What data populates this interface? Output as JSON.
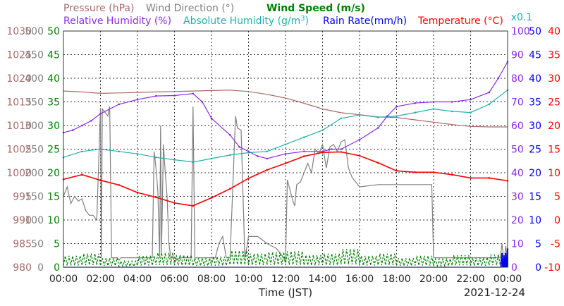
{
  "chart_data": {
    "type": "line",
    "date": "2021-12-24",
    "xlabel": "Time (JST)",
    "x_ticks": [
      "00:00",
      "02:00",
      "04:00",
      "06:00",
      "08:00",
      "10:00",
      "12:00",
      "14:00",
      "16:00",
      "18:00",
      "20:00",
      "22:00",
      "00:00"
    ],
    "legend": [
      {
        "id": "pressure",
        "label": "Pressure (hPa)",
        "color": "#a86a6a"
      },
      {
        "id": "wind_dir",
        "label": "Wind Direction (°)",
        "color": "#808080"
      },
      {
        "id": "wind_speed",
        "label": "Wind Speed (m/s)",
        "color": "#008000"
      },
      {
        "id": "rh",
        "label": "Relative Humidity (%)",
        "color": "#8a2be2"
      },
      {
        "id": "ah",
        "label": "Absolute Humidity (g/m",
        "label_sup": "3",
        "label_tail": ")",
        "color": "#20b2aa"
      },
      {
        "id": "rain",
        "label": "Rain Rate(mm/h)",
        "color": "#0000ee"
      },
      {
        "id": "temp",
        "label": "Temperature (°C)",
        "color": "#ff0000"
      }
    ],
    "scale_note": "x0.1",
    "axes": {
      "pressure": {
        "color": "#a86a6a",
        "range": [
          980,
          1030
        ],
        "ticks": [
          "980",
          "985",
          "990",
          "995",
          "1000",
          "1005",
          "1010",
          "1015",
          "1020",
          "1025",
          "1030"
        ]
      },
      "wind_dir": {
        "color": "#808080",
        "range": [
          0,
          500
        ],
        "ticks": [
          "0",
          "50",
          "100",
          "150",
          "200",
          "250",
          "300",
          "350",
          "400",
          "450",
          "500"
        ]
      },
      "wind_speed": {
        "color": "#008000",
        "range": [
          0,
          50
        ],
        "ticks": [
          "0",
          "5",
          "10",
          "15",
          "20",
          "25",
          "30",
          "35",
          "40",
          "45",
          "50"
        ]
      },
      "rh": {
        "color": "#8a2be2",
        "range": [
          0,
          100
        ],
        "ticks": [
          "0",
          "10",
          "20",
          "30",
          "40",
          "50",
          "60",
          "70",
          "80",
          "90",
          "100"
        ]
      },
      "rain": {
        "color": "#0000ee",
        "range": [
          0,
          50
        ],
        "ticks": [
          "0",
          "5",
          "10",
          "15",
          "20",
          "25",
          "30",
          "35",
          "40",
          "45",
          "50"
        ]
      },
      "temp": {
        "color": "#ff0000",
        "range": [
          -10,
          40
        ],
        "ticks": [
          "-10",
          "-5",
          "0",
          "5",
          "10",
          "15",
          "20",
          "25",
          "30",
          "35",
          "40"
        ]
      }
    },
    "series": [
      {
        "id": "pressure",
        "name": "Pressure (hPa)",
        "axis": "pressure",
        "color": "#a86a6a",
        "x": [
          0,
          1,
          2,
          3,
          4,
          5,
          6,
          7,
          8,
          9,
          10,
          11,
          12,
          13,
          14,
          15,
          16,
          17,
          18,
          19,
          20,
          21,
          22,
          23,
          24
        ],
        "y": [
          1017.3,
          1017.1,
          1016.8,
          1016.9,
          1017.0,
          1017.1,
          1017.2,
          1017.3,
          1017.4,
          1017.5,
          1017.2,
          1016.6,
          1015.8,
          1014.7,
          1013.5,
          1012.7,
          1012.3,
          1011.8,
          1011.7,
          1011.2,
          1010.7,
          1010.2,
          1009.8,
          1009.7,
          1009.7
        ]
      },
      {
        "id": "ah",
        "name": "Absolute Humidity (g/m3)",
        "axis": "rh",
        "color": "#20b2aa",
        "scale": "x0.1",
        "x": [
          0,
          1,
          2,
          3,
          4,
          5,
          6,
          7,
          8,
          9,
          10,
          11,
          12,
          13,
          14,
          15,
          16,
          17,
          18,
          19,
          20,
          21,
          22,
          23,
          24
        ],
        "y": [
          46.5,
          49.0,
          50.0,
          49.0,
          48.0,
          46.5,
          45.5,
          44.5,
          46.0,
          47.5,
          48.5,
          49.0,
          52.0,
          55.0,
          58.0,
          63.0,
          64.5,
          63.5,
          64.0,
          65.5,
          67.0,
          66.0,
          65.5,
          69.0,
          75.0
        ]
      },
      {
        "id": "rh",
        "name": "Relative Humidity (%)",
        "axis": "rh",
        "color": "#8a2be2",
        "x": [
          0,
          0.5,
          1,
          1.5,
          2,
          3,
          4,
          5,
          6,
          7,
          7.5,
          8,
          9,
          9.5,
          10,
          10.5,
          11,
          12,
          13,
          14,
          14.5,
          15,
          16,
          17,
          17.5,
          18,
          19,
          20,
          21,
          22,
          23,
          23.5,
          24
        ],
        "y": [
          57,
          58,
          60,
          62,
          65,
          69,
          71,
          72.5,
          72.7,
          73.5,
          70,
          63,
          56,
          51,
          49,
          47,
          46,
          48,
          49,
          49,
          50,
          50,
          54,
          59,
          64,
          68,
          69.5,
          70,
          70,
          71,
          74,
          80,
          87
        ]
      },
      {
        "id": "temp",
        "name": "Temperature (°C)",
        "axis": "temp",
        "color": "#ff0000",
        "x": [
          0,
          1,
          2,
          3,
          4,
          5,
          6,
          7,
          8,
          9,
          10,
          11,
          12,
          13,
          14,
          15,
          16,
          17,
          18,
          19,
          20,
          21,
          22,
          23,
          24
        ],
        "y": [
          8.6,
          9.6,
          8.4,
          7.4,
          5.8,
          4.8,
          3.6,
          3.0,
          4.7,
          6.6,
          8.8,
          10.6,
          12.0,
          13.5,
          14.3,
          14.4,
          13.6,
          12.1,
          10.4,
          10.1,
          10.1,
          9.6,
          8.9,
          8.9,
          8.3
        ]
      },
      {
        "id": "wind_dir",
        "name": "Wind Direction (°)",
        "axis": "wind_dir",
        "color": "#808080",
        "x": [
          0,
          0.2,
          0.4,
          0.6,
          0.8,
          1.0,
          1.2,
          1.4,
          1.6,
          1.8,
          2.0,
          2.05,
          2.1,
          2.4,
          2.5,
          2.6,
          2.9,
          3.0,
          3.1,
          4.8,
          4.9,
          5.0,
          5.1,
          5.2,
          5.25,
          5.3,
          5.4,
          5.5,
          5.6,
          5.7,
          5.8,
          5.9,
          6.0,
          6.1,
          6.3,
          6.9,
          7.0,
          7.1,
          7.3,
          8.2,
          8.4,
          8.6,
          8.8,
          9.0,
          9.3,
          9.4,
          9.6,
          9.8,
          9.9,
          10.0,
          10.5,
          11.0,
          11.5,
          11.9,
          12.0,
          12.1,
          12.4,
          12.5,
          12.6,
          12.8,
          13.0,
          13.2,
          13.4,
          13.6,
          13.8,
          14.0,
          14.2,
          14.4,
          14.6,
          14.8,
          15.0,
          15.2,
          15.4,
          15.6,
          15.8,
          16.0,
          17.0,
          18.0,
          19.0,
          19.9,
          20.0,
          20.1,
          21.0,
          22.0,
          23.0,
          23.6,
          23.7,
          23.8,
          23.9,
          24.0
        ],
        "y": [
          150,
          170,
          135,
          150,
          140,
          145,
          120,
          110,
          110,
          100,
          337,
          20,
          335,
          320,
          340,
          20,
          20,
          15,
          20,
          20,
          245,
          210,
          160,
          20,
          300,
          30,
          260,
          200,
          150,
          50,
          20,
          20,
          20,
          15,
          20,
          20,
          340,
          20,
          20,
          20,
          50,
          65,
          20,
          20,
          320,
          295,
          290,
          20,
          40,
          65,
          65,
          50,
          40,
          20,
          10,
          185,
          140,
          130,
          175,
          180,
          200,
          220,
          200,
          250,
          240,
          260,
          210,
          255,
          260,
          245,
          265,
          270,
          210,
          190,
          180,
          170,
          175,
          175,
          175,
          175,
          20,
          20,
          20,
          20,
          20,
          20,
          50,
          10,
          45,
          15
        ]
      },
      {
        "id": "wind_speed",
        "name": "Wind Speed (m/s)",
        "axis": "wind_speed",
        "color": "#008000",
        "x": [
          0,
          1,
          2,
          3,
          4,
          5,
          6,
          7,
          8,
          9,
          10,
          11,
          12,
          13,
          14,
          15,
          16,
          17,
          18,
          19,
          20,
          21,
          22,
          23,
          24
        ],
        "y": [
          1.5,
          1.8,
          1.2,
          0.8,
          1.5,
          1.9,
          1.6,
          1.2,
          1.4,
          2.2,
          1.8,
          2.0,
          2.1,
          1.6,
          1.8,
          2.4,
          1.5,
          1.8,
          1.2,
          1.5,
          1.1,
          1.6,
          1.3,
          1.7,
          1.8
        ]
      },
      {
        "id": "rain",
        "name": "Rain Rate(mm/h)",
        "axis": "rain",
        "color": "#0000ee",
        "x": [
          0,
          23.6,
          23.7,
          23.75,
          23.8,
          23.85,
          23.9,
          23.95,
          24.0
        ],
        "y": [
          0,
          0,
          3,
          0,
          2.5,
          0.5,
          3,
          1,
          4
        ]
      }
    ]
  }
}
